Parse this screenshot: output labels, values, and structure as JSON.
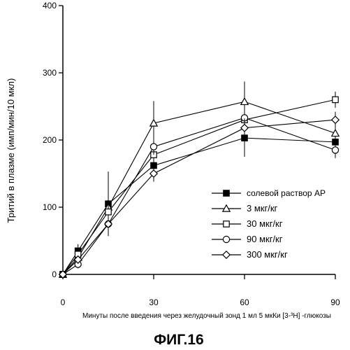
{
  "figure_caption": "ФИГ.16",
  "chart_data": {
    "type": "line",
    "xlabel": "Минуты после введения через желудочный зонд 1 мл 5 мкКи [3-³H] -глюкозы",
    "ylabel": "Тритий в плазме (имп/мин/10 мкл)",
    "xlim": [
      0,
      90
    ],
    "ylim": [
      0,
      400
    ],
    "x_ticks": [
      0,
      30,
      60,
      90
    ],
    "y_ticks": [
      0,
      100,
      200,
      300,
      400
    ],
    "x": [
      0,
      5,
      15,
      30,
      60,
      90
    ],
    "legend_position": "right",
    "grid": false,
    "series": [
      {
        "name": "солевой раствор AP",
        "marker": "filled-square",
        "values": [
          0,
          35,
          105,
          162,
          203,
          197
        ],
        "errors": [
          0,
          10,
          48,
          20,
          28,
          15
        ]
      },
      {
        "name": "3  мкг/кг",
        "marker": "open-triangle",
        "values": [
          0,
          25,
          100,
          225,
          257,
          210
        ],
        "errors": [
          0,
          8,
          25,
          33,
          30,
          18
        ]
      },
      {
        "name": "30 мкг/кг",
        "marker": "open-square",
        "values": [
          0,
          30,
          93,
          178,
          230,
          260
        ],
        "errors": [
          0,
          8,
          20,
          15,
          18,
          12
        ]
      },
      {
        "name": "90 мкг/кг",
        "marker": "open-circle",
        "values": [
          0,
          15,
          75,
          190,
          233,
          185
        ],
        "errors": [
          0,
          6,
          12,
          12,
          15,
          12
        ]
      },
      {
        "name": "300 мкг/кг",
        "marker": "open-diamond",
        "values": [
          0,
          22,
          75,
          150,
          218,
          230
        ],
        "errors": [
          0,
          6,
          10,
          12,
          14,
          12
        ]
      }
    ]
  }
}
